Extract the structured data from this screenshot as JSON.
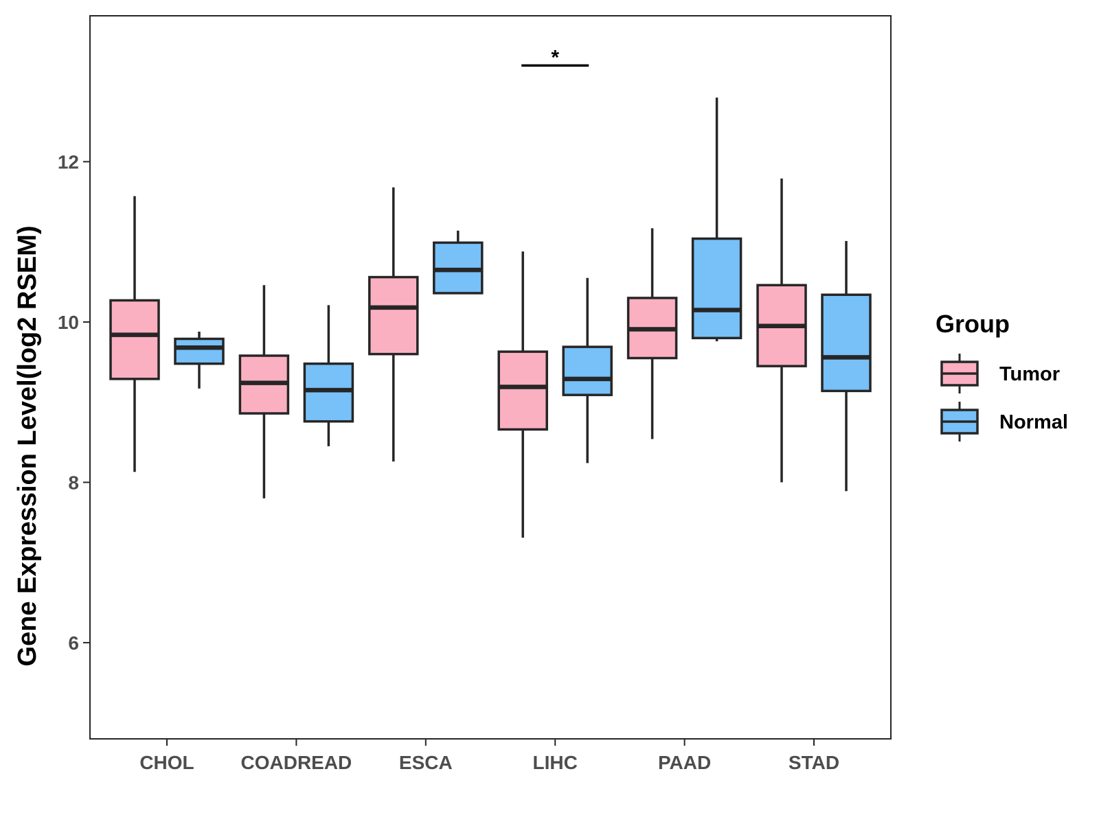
{
  "chart_data": {
    "type": "boxplot",
    "title": "",
    "xlabel": "",
    "ylabel": "Gene Expression Level(log2 RSEM)",
    "ylim": [
      4.8,
      13.82
    ],
    "yticks": [
      6,
      8,
      10,
      12
    ],
    "ytick_labels": [
      "6",
      "8",
      "10",
      "12"
    ],
    "categories": [
      "CHOL",
      "COADREAD",
      "ESCA",
      "LIHC",
      "PAAD",
      "STAD"
    ],
    "legend": {
      "title": "Group",
      "position": "right",
      "entries": [
        "Tumor",
        "Normal"
      ]
    },
    "series": [
      {
        "name": "Tumor",
        "color": "#FBB0C1",
        "boxes": [
          {
            "min": 8.13,
            "q1": 9.29,
            "median": 9.84,
            "q3": 10.27,
            "max": 11.57
          },
          {
            "min": 7.8,
            "q1": 8.86,
            "median": 9.24,
            "q3": 9.58,
            "max": 10.46
          },
          {
            "min": 8.26,
            "q1": 9.6,
            "median": 10.18,
            "q3": 10.56,
            "max": 11.68
          },
          {
            "min": 7.31,
            "q1": 8.66,
            "median": 9.19,
            "q3": 9.63,
            "max": 10.88
          },
          {
            "min": 8.54,
            "q1": 9.55,
            "median": 9.91,
            "q3": 10.3,
            "max": 11.17
          },
          {
            "min": 8.0,
            "q1": 9.45,
            "median": 9.95,
            "q3": 10.46,
            "max": 11.79
          }
        ]
      },
      {
        "name": "Normal",
        "color": "#77C0F8",
        "boxes": [
          {
            "min": 9.17,
            "q1": 9.48,
            "median": 9.68,
            "q3": 9.79,
            "max": 9.88
          },
          {
            "min": 8.45,
            "q1": 8.76,
            "median": 9.15,
            "q3": 9.48,
            "max": 10.21
          },
          {
            "min": 10.36,
            "q1": 10.36,
            "median": 10.65,
            "q3": 10.99,
            "max": 11.14
          },
          {
            "min": 8.24,
            "q1": 9.09,
            "median": 9.29,
            "q3": 9.69,
            "max": 10.55
          },
          {
            "min": 9.76,
            "q1": 9.8,
            "median": 10.15,
            "q3": 11.04,
            "max": 12.8
          },
          {
            "min": 7.89,
            "q1": 9.14,
            "median": 9.56,
            "q3": 10.34,
            "max": 11.01
          }
        ]
      }
    ],
    "annotations": [
      {
        "text": "*",
        "category": "LIHC",
        "y": 13.2
      }
    ]
  }
}
